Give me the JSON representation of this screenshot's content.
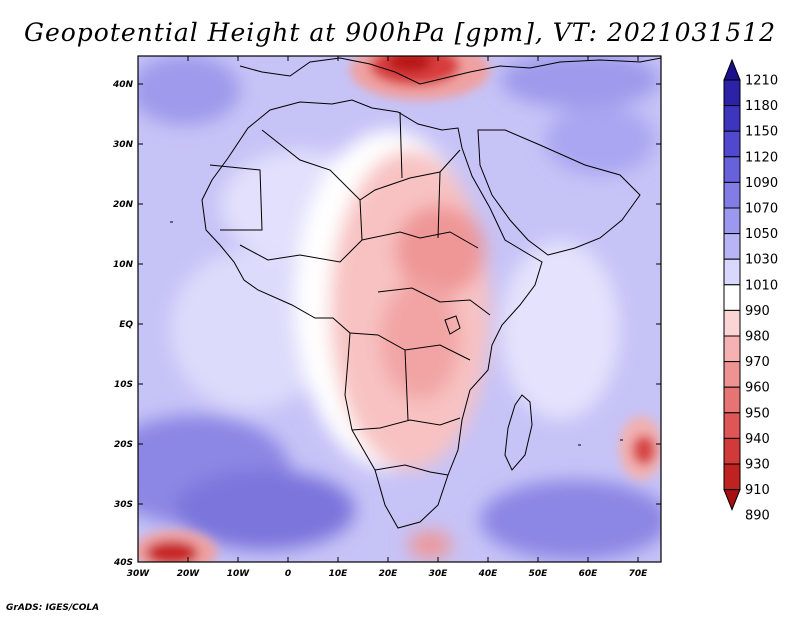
{
  "title": "Geopotential Height at 900hPa [gpm], VT: 2021031512",
  "credit": "GrADS: IGES/COLA",
  "map": {
    "lat_labels": [
      "40N",
      "30N",
      "20N",
      "10N",
      "EQ",
      "10S",
      "20S",
      "30S",
      "40S"
    ],
    "lon_labels": [
      "30W",
      "20W",
      "10W",
      "0",
      "10E",
      "20E",
      "30E",
      "40E",
      "50E",
      "60E",
      "70E"
    ]
  },
  "colorbar": {
    "levels": [
      "1210",
      "1180",
      "1150",
      "1120",
      "1090",
      "1070",
      "1050",
      "1030",
      "1010",
      "990",
      "980",
      "970",
      "960",
      "950",
      "940",
      "930",
      "910",
      "890"
    ],
    "colors": [
      "#1a0f8c",
      "#2b22a8",
      "#3d35be",
      "#5048cf",
      "#6861dc",
      "#827ce6",
      "#9c97ef",
      "#b8b4f6",
      "#d9d7fb",
      "#ffffff",
      "#fbd4d4",
      "#f6b2b2",
      "#ef9292",
      "#e77474",
      "#de5656",
      "#d23a3a",
      "#c02222",
      "#a61010"
    ]
  },
  "colors": {
    "ocean_deep": "#8c86e4",
    "ocean_mid": "#b5b1f3",
    "ocean_light": "#dddbfb",
    "land_warm": "#f8c2c2",
    "land_hot": "#ef9696",
    "high_red": "#c81e1e"
  }
}
